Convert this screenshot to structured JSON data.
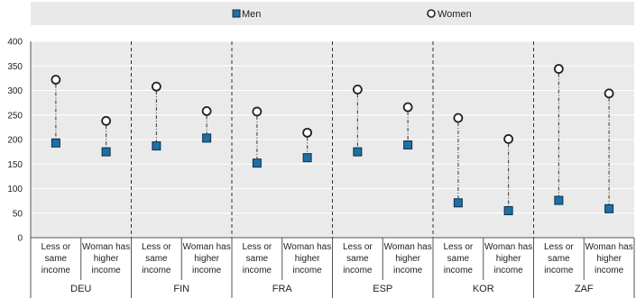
{
  "chart_data": {
    "type": "scatter",
    "legend": [
      {
        "name": "Men",
        "marker": "square",
        "color": "#1f6fa3"
      },
      {
        "name": "Women",
        "marker": "circle",
        "color": "#ffffff"
      }
    ],
    "ylim": [
      0,
      400
    ],
    "yticks": [
      0,
      50,
      100,
      150,
      200,
      250,
      300,
      350,
      400
    ],
    "grid": true,
    "legend_position": "top",
    "categories": [
      "Less or same income",
      "Woman has higher income"
    ],
    "category_lines": [
      [
        "Less or",
        "same",
        "income"
      ],
      [
        "Woman has",
        "higher",
        "income"
      ]
    ],
    "groups": [
      {
        "country": "DEU",
        "men": [
          193,
          175
        ],
        "women": [
          322,
          238
        ]
      },
      {
        "country": "FIN",
        "men": [
          187,
          203
        ],
        "women": [
          308,
          258
        ]
      },
      {
        "country": "FRA",
        "men": [
          152,
          163
        ],
        "women": [
          257,
          214
        ]
      },
      {
        "country": "ESP",
        "men": [
          175,
          189
        ],
        "women": [
          302,
          266
        ]
      },
      {
        "country": "KOR",
        "men": [
          71,
          55
        ],
        "women": [
          244,
          201
        ]
      },
      {
        "country": "ZAF",
        "men": [
          76,
          59
        ],
        "women": [
          344,
          294
        ]
      }
    ]
  }
}
